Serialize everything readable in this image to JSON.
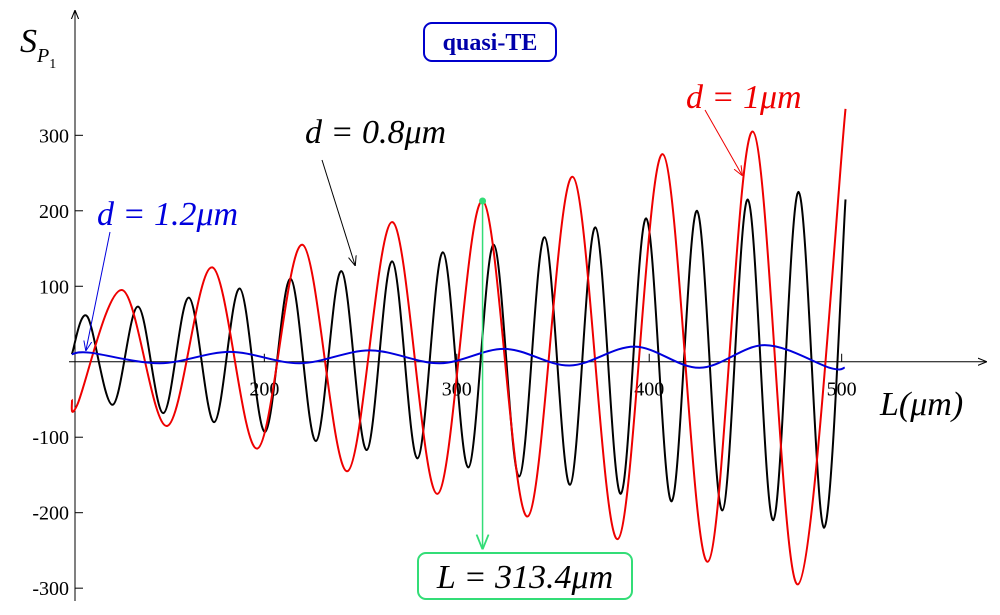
{
  "chart_data": {
    "type": "line",
    "title": "quasi-TE",
    "ylabel": {
      "main": "S",
      "sub": "P",
      "subsub": "1"
    },
    "xlabel": "L(μm)",
    "xlim": [
      98.5,
      575
    ],
    "ylim": [
      -317,
      470
    ],
    "xticks": [
      200,
      300,
      400,
      500
    ],
    "yticks": [
      -300,
      -200,
      -100,
      100,
      200,
      300
    ],
    "marker": {
      "label": "L = 313.4μm",
      "x": 313.4,
      "y": 213,
      "color": "#33dd77"
    },
    "series": [
      {
        "name": "d = 0.8μm",
        "color": "#000000",
        "x": [
          100,
          108,
          121.2,
          134.4,
          147.6,
          160.8,
          174,
          187.2,
          200.4,
          213.6,
          226.8,
          240,
          253.2,
          266.4,
          279.6,
          292.8,
          306,
          319.2,
          332.4,
          345.6,
          358.8,
          372,
          385.2,
          398.4,
          411.6,
          424.8,
          438,
          451.2,
          464.4,
          477.6,
          490.8,
          502
        ],
        "values": [
          10,
          60,
          -57,
          73,
          -68,
          85,
          -80,
          97,
          -93,
          110,
          -105,
          120,
          -117,
          133,
          -128,
          145,
          -140,
          155,
          -152,
          165,
          -163,
          178,
          -175,
          190,
          -185,
          200,
          -197,
          215,
          -210,
          225,
          -220,
          215
        ]
      },
      {
        "name": "d = 1μm",
        "color": "#ee0000",
        "x": [
          100,
          102.8,
          126.2,
          149.6,
          173,
          196.4,
          219.8,
          243.2,
          266.6,
          290,
          313.4,
          336.8,
          360.2,
          383.6,
          407,
          430.4,
          453.8,
          477.2,
          502
        ],
        "values": [
          -50,
          -57,
          95,
          -85,
          125,
          -115,
          155,
          -145,
          185,
          -175,
          213,
          -205,
          245,
          -235,
          275,
          -265,
          305,
          -295,
          335
        ]
      },
      {
        "name": "d = 1.2μm",
        "color": "#0000dd",
        "x": [
          100,
          109.4,
          145.7,
          182.1,
          218.4,
          254.8,
          291.2,
          325,
          358.7,
          392.5,
          426.2,
          460,
          493.8,
          501.6
        ],
        "values": [
          10,
          12,
          -2,
          13,
          -2,
          15,
          -2,
          17,
          -5,
          20,
          -8,
          22,
          -8,
          -8
        ]
      }
    ]
  }
}
